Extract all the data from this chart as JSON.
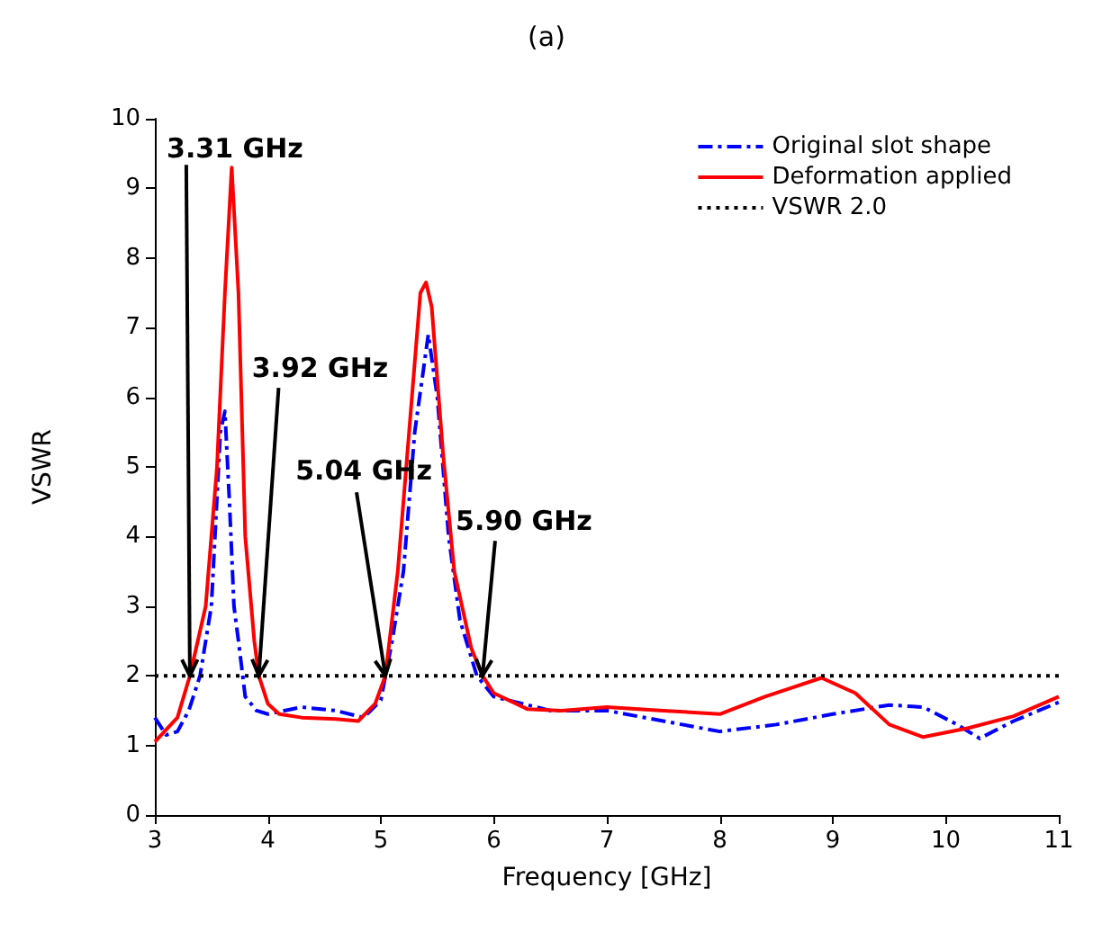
{
  "chart_data": {
    "type": "line",
    "title": "(a)",
    "xlabel": "Frequency [GHz]",
    "ylabel": "VSWR",
    "xlim": [
      3,
      11
    ],
    "xticks": [
      3,
      4,
      5,
      6,
      7,
      8,
      9,
      10,
      11
    ],
    "ylim": [
      0,
      10
    ],
    "yticks": [
      0,
      1,
      2,
      3,
      4,
      5,
      6,
      7,
      8,
      9,
      10
    ],
    "grid": false,
    "legend": "top right",
    "marker": "none",
    "series": [
      {
        "name": "Original slot shape",
        "color": "#0000ff",
        "line_style": "dashed",
        "x": [
          3.0,
          3.1,
          3.2,
          3.3,
          3.4,
          3.5,
          3.58,
          3.62,
          3.66,
          3.7,
          3.74,
          3.8,
          3.9,
          4.0,
          4.3,
          4.6,
          4.85,
          5.0,
          5.1,
          5.2,
          5.3,
          5.42,
          5.5,
          5.6,
          5.7,
          5.85,
          6.0,
          6.5,
          7.0,
          7.5,
          8.0,
          8.5,
          9.0,
          9.5,
          9.8,
          10.1,
          10.3,
          10.6,
          11.0
        ],
        "values": [
          1.4,
          1.15,
          1.2,
          1.5,
          2.0,
          3.0,
          5.5,
          5.8,
          4.5,
          3.0,
          2.5,
          1.7,
          1.5,
          1.45,
          1.55,
          1.5,
          1.4,
          1.65,
          2.5,
          3.5,
          5.5,
          6.9,
          6.0,
          4.0,
          2.8,
          2.0,
          1.7,
          1.5,
          1.5,
          1.35,
          1.2,
          1.3,
          1.45,
          1.58,
          1.55,
          1.3,
          1.1,
          1.35,
          1.62
        ]
      },
      {
        "name": "Deformation applied",
        "color": "#ff0000",
        "line_style": "solid",
        "x": [
          3.0,
          3.2,
          3.31,
          3.45,
          3.55,
          3.62,
          3.68,
          3.74,
          3.8,
          3.88,
          3.92,
          4.0,
          4.1,
          4.3,
          4.6,
          4.8,
          4.95,
          5.04,
          5.15,
          5.25,
          5.35,
          5.4,
          5.45,
          5.55,
          5.65,
          5.8,
          5.9,
          6.0,
          6.3,
          6.6,
          7.0,
          7.5,
          8.0,
          8.4,
          8.9,
          9.2,
          9.5,
          9.8,
          10.2,
          10.6,
          11.0
        ],
        "values": [
          1.05,
          1.4,
          2.0,
          3.0,
          5.0,
          7.5,
          9.3,
          7.5,
          4.0,
          2.5,
          2.0,
          1.6,
          1.45,
          1.4,
          1.38,
          1.35,
          1.6,
          2.0,
          3.5,
          5.5,
          7.5,
          7.65,
          7.3,
          5.2,
          3.5,
          2.4,
          2.0,
          1.75,
          1.52,
          1.5,
          1.55,
          1.5,
          1.45,
          1.7,
          1.97,
          1.75,
          1.3,
          1.12,
          1.25,
          1.42,
          1.7
        ]
      }
    ],
    "ref_lines": [
      {
        "axis": "y",
        "value": 2,
        "label": "VSWR 2.0",
        "color": "#000000",
        "line_style": "dotted"
      }
    ],
    "annotations": [
      {
        "text": "3.31 GHz",
        "x": 3.31,
        "y": 2
      },
      {
        "text": "3.92 GHz",
        "x": 3.92,
        "y": 2
      },
      {
        "text": "5.04 GHz",
        "x": 5.04,
        "y": 2
      },
      {
        "text": "5.90 GHz",
        "x": 5.9,
        "y": 2
      }
    ]
  }
}
